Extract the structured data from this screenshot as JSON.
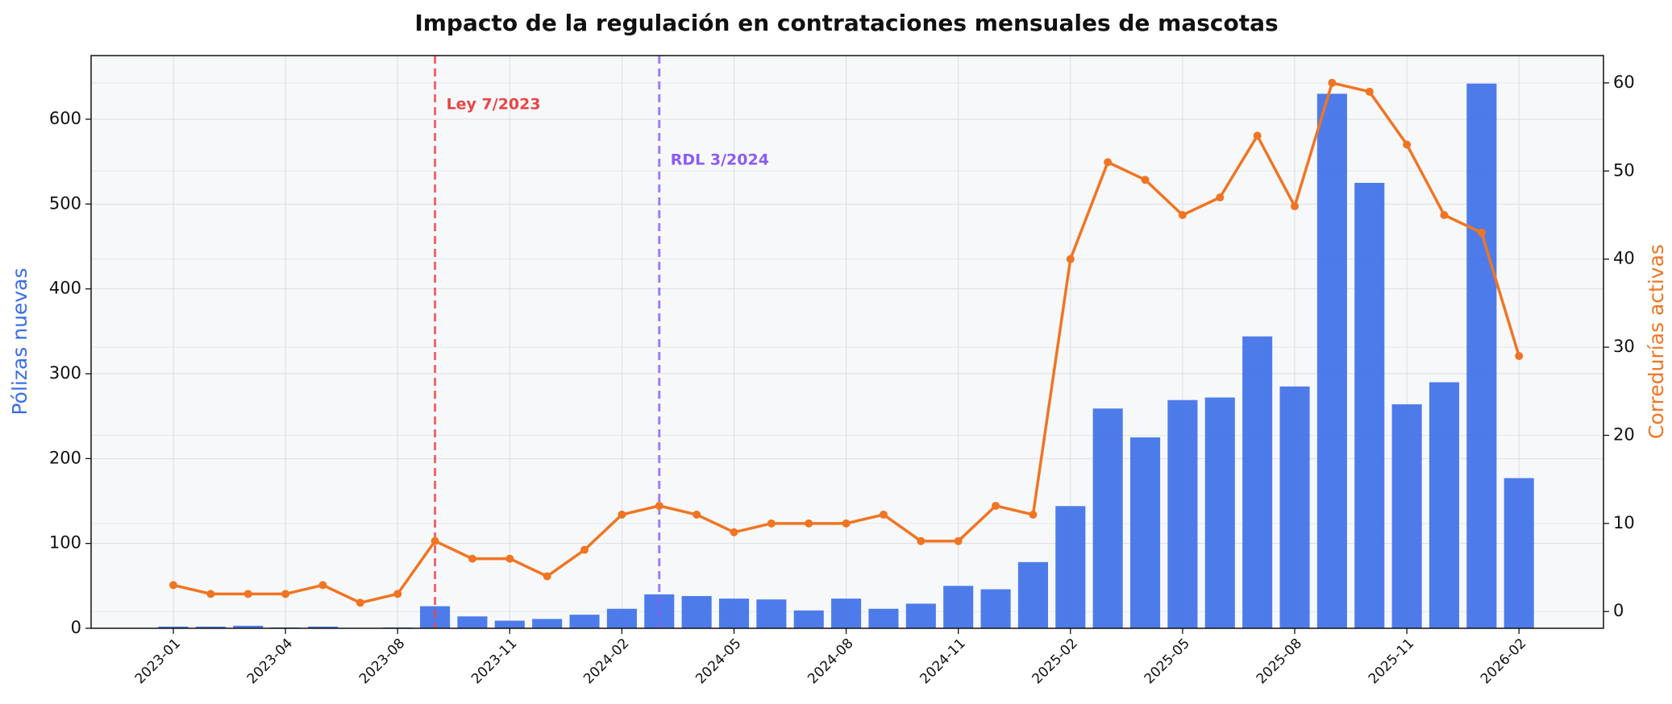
{
  "chart_data": {
    "type": "bar",
    "title": "Impacto de la regulación en contrataciones mensuales de mascotas",
    "ylabel": "Pólizas nuevas",
    "y2label": "Corredurías activas",
    "categories": [
      "2023-01",
      null,
      null,
      "2023-04",
      null,
      null,
      "2023-08",
      null,
      null,
      "2023-11",
      null,
      null,
      "2024-02",
      null,
      null,
      "2024-05",
      null,
      null,
      "2024-08",
      null,
      null,
      "2024-11",
      null,
      null,
      "2025-02",
      null,
      null,
      "2025-05",
      null,
      null,
      "2025-08",
      null,
      null,
      "2025-11",
      null,
      null,
      "2026-02"
    ],
    "series": [
      {
        "name": "Pólizas nuevas",
        "type": "bar",
        "axis": "y",
        "color": "#3a6ee8",
        "values": [
          2,
          2,
          3,
          1,
          2,
          0,
          1,
          26,
          14,
          9,
          11,
          16,
          23,
          40,
          38,
          35,
          34,
          21,
          35,
          23,
          29,
          50,
          46,
          78,
          144,
          259,
          225,
          269,
          272,
          344,
          285,
          630,
          525,
          264,
          290,
          642,
          177
        ]
      },
      {
        "name": "Corredurías activas",
        "type": "line",
        "axis": "y2",
        "color": "#f07522",
        "values": [
          3,
          2,
          2,
          2,
          3,
          1,
          2,
          8,
          6,
          6,
          4,
          7,
          11,
          12,
          11,
          9,
          10,
          10,
          10,
          11,
          8,
          8,
          12,
          11,
          40,
          51,
          49,
          45,
          47,
          54,
          46,
          60,
          59,
          53,
          45,
          43,
          29
        ]
      }
    ],
    "annotations": [
      {
        "text": "Ley 7/2023",
        "index": 7,
        "color": "#e84545"
      },
      {
        "text": "RDL 3/2024",
        "index": 13,
        "color": "#8b5cf6"
      }
    ],
    "ylim": [
      0,
      675
    ],
    "yticks": [
      0,
      100,
      200,
      300,
      400,
      500,
      600
    ],
    "y2lim": [
      -1.9,
      63.1
    ],
    "y2ticks": [
      0,
      10,
      20,
      30,
      40,
      50,
      60
    ],
    "grid": true
  }
}
